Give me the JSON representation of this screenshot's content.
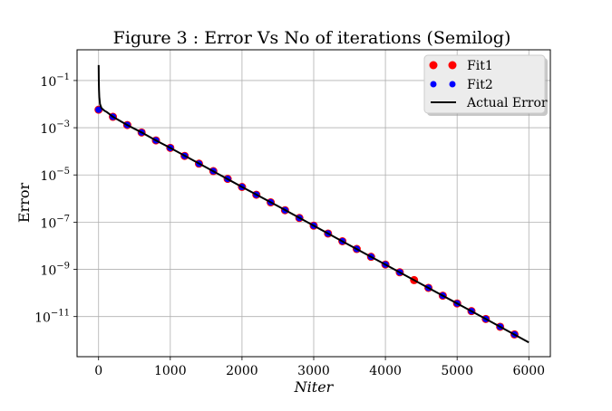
{
  "chart_data": {
    "type": "scatter",
    "title": "Figure 3 : Error Vs No of iterations (Semilog)",
    "xlabel": "Niter",
    "ylabel": "Error",
    "xlim": [
      -300,
      6300
    ],
    "ylim": [
      2e-13,
      2.0
    ],
    "yscale": "log",
    "grid": true,
    "legend_position": "top-right",
    "x_ticks": [
      0,
      1000,
      2000,
      3000,
      4000,
      5000,
      6000
    ],
    "x_tick_labels": [
      "0",
      "1000",
      "2000",
      "3000",
      "4000",
      "5000",
      "6000"
    ],
    "y_ticks": [
      1e-11,
      1e-09,
      1e-07,
      1e-05,
      0.001,
      0.1
    ],
    "y_tick_labels": [
      {
        "base": "10",
        "exp": "−11"
      },
      {
        "base": "10",
        "exp": "−9"
      },
      {
        "base": "10",
        "exp": "−7"
      },
      {
        "base": "10",
        "exp": "−5"
      },
      {
        "base": "10",
        "exp": "−3"
      },
      {
        "base": "10",
        "exp": "−1"
      }
    ],
    "series": [
      {
        "name": "Fit1",
        "marker": "circle",
        "color": "#ff0000",
        "x": [
          0,
          200,
          400,
          600,
          800,
          1000,
          1200,
          1400,
          1600,
          1800,
          2000,
          2200,
          2400,
          2600,
          2800,
          3000,
          3200,
          3400,
          3600,
          3800,
          4000,
          4200,
          4400,
          4600,
          4800,
          5000,
          5200,
          5400,
          5600,
          5800
        ],
        "y": [
          0.0058,
          0.0029,
          0.0013,
          0.00063,
          0.00029,
          0.00014,
          6.4e-05,
          3e-05,
          1.45e-05,
          6.8e-06,
          3.1e-06,
          1.45e-06,
          6.9e-07,
          3.2e-07,
          1.5e-07,
          7.1e-08,
          3.3e-08,
          1.55e-08,
          7.3e-09,
          3.4e-09,
          1.6e-09,
          7.5e-10,
          3.5e-10,
          1.65e-10,
          7.7e-11,
          3.6e-11,
          1.7e-11,
          7.9e-12,
          3.7e-12,
          1.75e-12
        ]
      },
      {
        "name": "Fit2",
        "marker": "circle",
        "color": "#0000ff",
        "x": [
          0,
          200,
          400,
          600,
          800,
          1000,
          1200,
          1400,
          1600,
          1800,
          2000,
          2200,
          2400,
          2600,
          2800,
          3000,
          3200,
          3400,
          3600,
          3800,
          4000,
          4200,
          4400,
          4600,
          4800,
          5000,
          5200,
          5400,
          5600,
          5800
        ],
        "y": [
          0.0058,
          0.0029,
          0.0013,
          0.00063,
          0.00029,
          0.00014,
          6.4e-05,
          3e-05,
          1.45e-05,
          6.8e-06,
          3.1e-06,
          1.45e-06,
          6.9e-07,
          3.2e-07,
          1.5e-07,
          7.1e-08,
          3.3e-08,
          1.55e-08,
          7.3e-09,
          3.4e-09,
          1.6e-09,
          7.5e-10,
          3.5e-10,
          1.65e-10,
          7.7e-11,
          3.6e-11,
          1.7e-11,
          7.9e-12,
          3.7e-12,
          1.75e-12
        ],
        "hidden_at_x": [
          4400
        ]
      },
      {
        "name": "Actual Error",
        "marker": "line",
        "color": "#000000",
        "x": [
          1,
          3,
          6,
          10,
          20,
          40,
          80,
          120,
          200,
          400,
          600,
          800,
          1000,
          1500,
          2000,
          2500,
          3000,
          3500,
          4000,
          4500,
          5000,
          5500,
          6000
        ],
        "y": [
          0.45,
          0.1,
          0.04,
          0.02,
          0.01,
          0.0068,
          0.0053,
          0.0045,
          0.0029,
          0.0013,
          0.00063,
          0.00029,
          0.00014,
          2.1e-05,
          3.1e-06,
          4.8e-07,
          7.1e-08,
          1.05e-08,
          1.6e-09,
          2.4e-10,
          3.6e-11,
          5.4e-12,
          8e-13
        ]
      }
    ]
  }
}
